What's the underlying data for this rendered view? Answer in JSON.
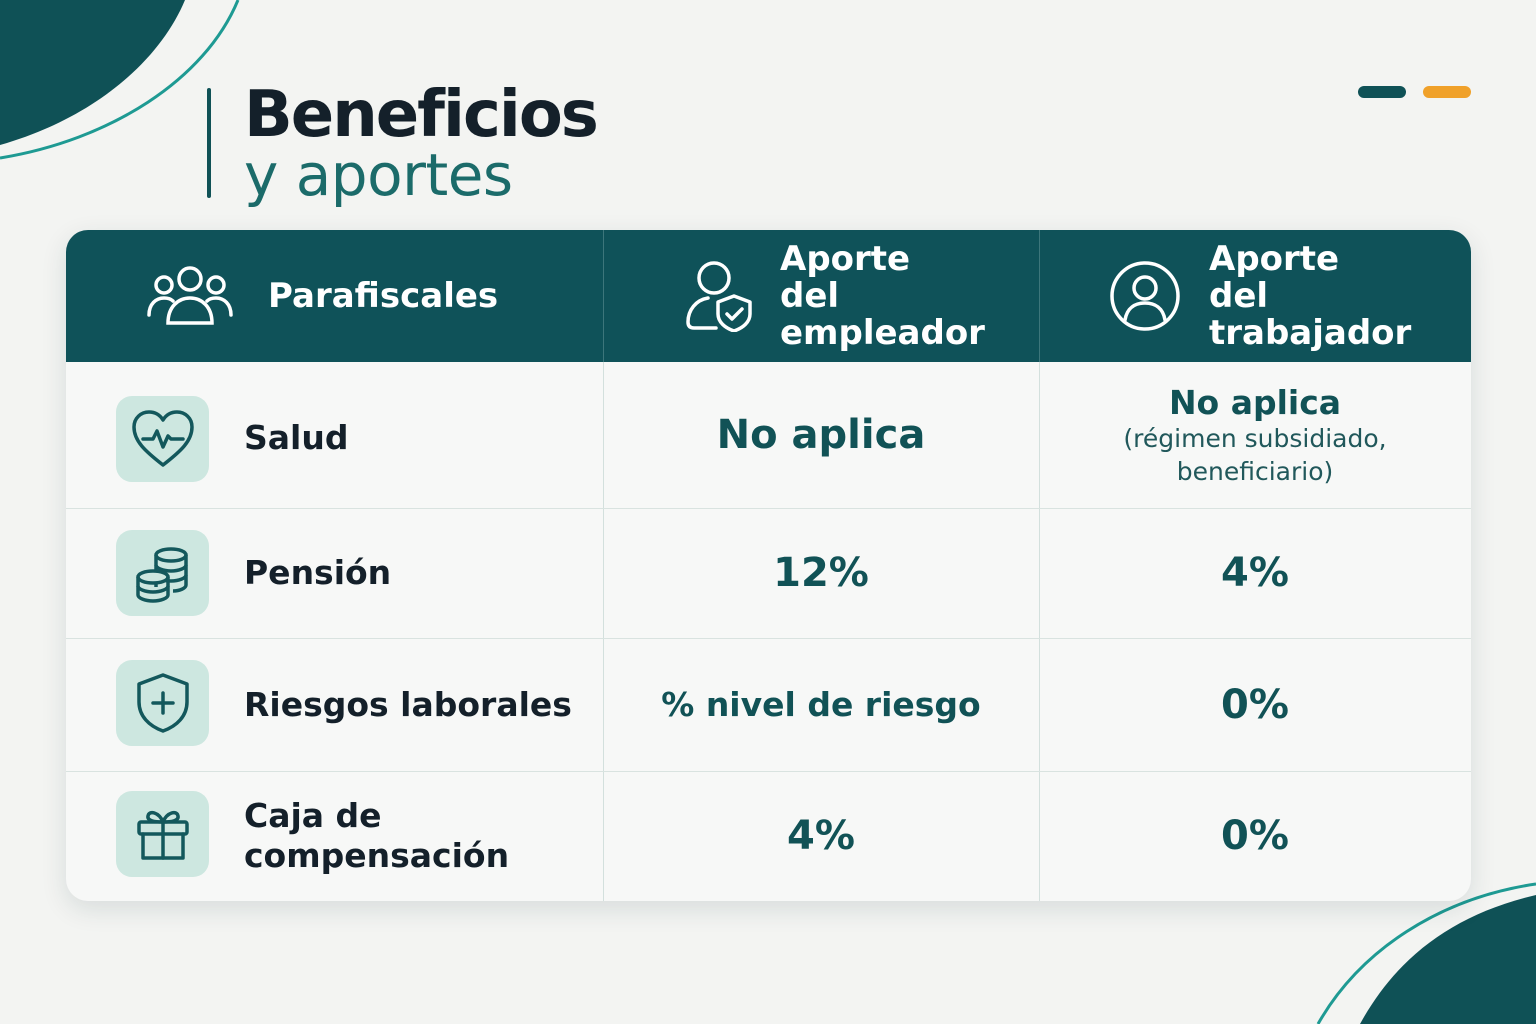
{
  "title": {
    "line1": "Beneficios",
    "line2": "y aportes"
  },
  "colors": {
    "primary": "#0f5259",
    "accent": "#f0a12a",
    "icon_bg": "#cde7e0",
    "background": "#f3f4f2"
  },
  "table": {
    "headers": [
      {
        "label": "Parafiscales",
        "icon": "people-group-icon"
      },
      {
        "label": "Aporte del empleador",
        "icon": "user-shield-icon"
      },
      {
        "label": "Aporte del trabajador",
        "icon": "user-circle-icon"
      }
    ],
    "rows": [
      {
        "label": "Salud",
        "icon": "heart-pulse-icon",
        "employer": "No aplica",
        "worker": "No aplica",
        "worker_note": "(régimen subsidiado, beneficiario)"
      },
      {
        "label": "Pensión",
        "icon": "coins-icon",
        "employer": "12%",
        "worker": "4%"
      },
      {
        "label": "Riesgos laborales",
        "icon": "shield-plus-icon",
        "employer": "% nivel de riesgo",
        "worker": "0%"
      },
      {
        "label": "Caja de compensación",
        "icon": "gift-icon",
        "employer": "4%",
        "worker": "0%"
      }
    ]
  }
}
